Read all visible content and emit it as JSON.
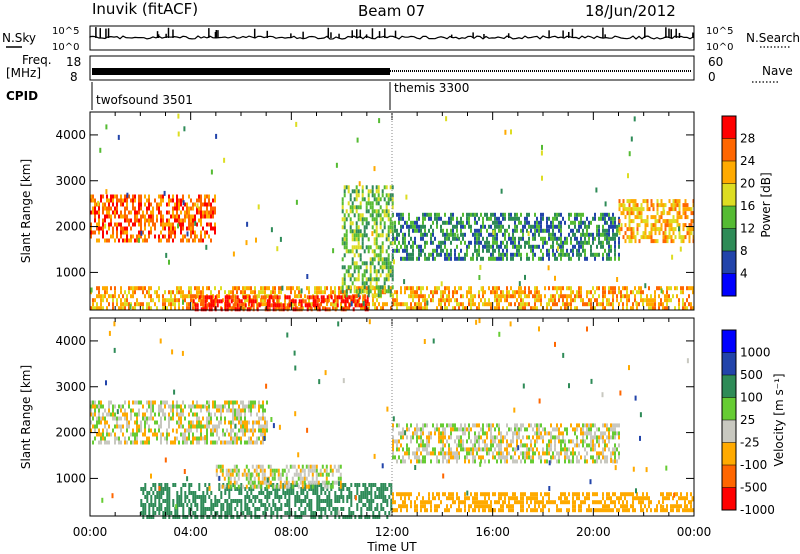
{
  "header": {
    "station": "Inuvik (fitACF)",
    "beam": "Beam 07",
    "date": "18/Jun/2012"
  },
  "top_panels": {
    "nsky_label": "N.Sky",
    "nsky_ticks": [
      "10^5",
      "10^0"
    ],
    "nsearch_label": "N.Search",
    "nsearch_ticks": [
      "10^5",
      "10^0"
    ],
    "freq_label": "Freq.",
    "freq_unit": "[MHz]",
    "freq_ticks": [
      "18",
      "8"
    ],
    "nave_label": "Nave",
    "nave_ticks": [
      "60",
      "0"
    ],
    "cpid_label": "CPID",
    "cpid_modes": [
      {
        "name": "twofsound 3501",
        "start_hour": 0,
        "end_hour": 12
      },
      {
        "name": "themis 3300",
        "start_hour": 12,
        "end_hour": 24
      }
    ]
  },
  "chart_data": [
    {
      "type": "heatmap",
      "ylabel": "Slant Range [km]",
      "xlabel": "Time UT",
      "xlim_hours": [
        0,
        24
      ],
      "ylim": [
        180,
        4500
      ],
      "y_ticks": [
        "1000",
        "2000",
        "3000",
        "4000"
      ],
      "x_ticks": [
        "00:00",
        "04:00",
        "08:00",
        "12:00",
        "16:00",
        "20:00",
        "00:00"
      ],
      "colorbar": {
        "label": "Power [dB]",
        "ticks": [
          "28",
          "24",
          "20",
          "16",
          "12",
          "8",
          "4"
        ],
        "colors": [
          "#ff0000",
          "#ff6600",
          "#ffaa00",
          "#dddd22",
          "#55bb33",
          "#2e8b57",
          "#2244aa",
          "#0000ff"
        ]
      },
      "features": [
        {
          "desc": "near-range band",
          "start_hour": 0,
          "end_hour": 24,
          "range_km": [
            200,
            700
          ],
          "power_db": 20
        },
        {
          "desc": "strong E region",
          "start_hour": 4,
          "end_hour": 11,
          "range_km": [
            200,
            500
          ],
          "power_db": 28
        },
        {
          "desc": "morning F region",
          "start_hour": 0,
          "end_hour": 5,
          "range_km": [
            1700,
            2700
          ],
          "power_db": 24
        },
        {
          "desc": "afternoon F region",
          "start_hour": 12,
          "end_hour": 21,
          "range_km": [
            1300,
            2300
          ],
          "power_db": 8
        },
        {
          "desc": "evening F region",
          "start_hour": 21,
          "end_hour": 24,
          "range_km": [
            1700,
            2600
          ],
          "power_db": 20
        },
        {
          "desc": "noon spike",
          "start_hour": 10,
          "end_hour": 12,
          "range_km": [
            500,
            2900
          ],
          "power_db": 12
        }
      ]
    },
    {
      "type": "heatmap",
      "ylabel": "Slant Range [km]",
      "xlabel": "Time UT",
      "xlim_hours": [
        0,
        24
      ],
      "ylim": [
        180,
        4500
      ],
      "y_ticks": [
        "1000",
        "2000",
        "3000",
        "4000"
      ],
      "x_ticks": [
        "00:00",
        "04:00",
        "08:00",
        "12:00",
        "16:00",
        "20:00",
        "00:00"
      ],
      "colorbar": {
        "label": "Velocity [m s⁻¹]",
        "ticks": [
          "1000",
          "500",
          "100",
          "25",
          "-25",
          "-100",
          "-500",
          "-1000"
        ],
        "colors": [
          "#0000ff",
          "#2244aa",
          "#2e8b57",
          "#66cc33",
          "#c8c8c0",
          "#ffaa00",
          "#ff6600",
          "#ff0000"
        ]
      },
      "features": [
        {
          "desc": "morning ground scatter",
          "start_hour": 0,
          "end_hour": 7,
          "range_km": [
            1800,
            2700
          ],
          "velocity": 0
        },
        {
          "desc": "afternoon ground scatter",
          "start_hour": 12,
          "end_hour": 21,
          "range_km": [
            1400,
            2200
          ],
          "velocity": 0
        },
        {
          "desc": "near range green",
          "start_hour": 2,
          "end_hour": 12,
          "range_km": [
            200,
            900
          ],
          "velocity": 200
        },
        {
          "desc": "near range orange",
          "start_hour": 12,
          "end_hour": 24,
          "range_km": [
            300,
            700
          ],
          "velocity": -200
        },
        {
          "desc": "ground scatter blob",
          "start_hour": 5,
          "end_hour": 10,
          "range_km": [
            800,
            1300
          ],
          "velocity": 0
        }
      ]
    }
  ]
}
